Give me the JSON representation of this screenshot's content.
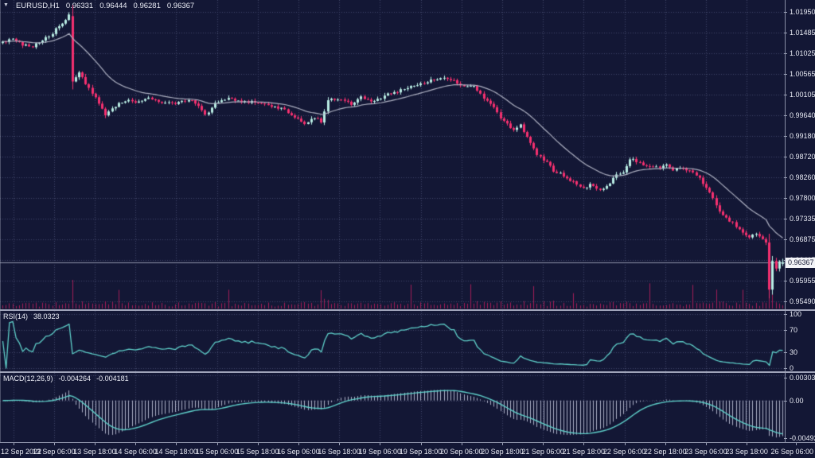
{
  "header": {
    "symbol": "EURUSD,H1",
    "open": "0.96331",
    "high": "0.96444",
    "low": "0.96281",
    "close": "0.96367"
  },
  "price_axis": {
    "badge": "0.96367"
  },
  "rsi_panel": {
    "label": "RSI(14)",
    "value": "38.0323"
  },
  "macd_panel": {
    "label": "MACD(12,26,9)",
    "macd_value": "-0.004264",
    "signal_value": "-0.004181"
  },
  "time_axis": {
    "labels": [
      "12 Sep 2022",
      "13 Sep 06:00",
      "13 Sep 18:00",
      "14 Sep 06:00",
      "14 Sep 18:00",
      "15 Sep 06:00",
      "15 Sep 18:00",
      "16 Sep 06:00",
      "16 Sep 18:00",
      "19 Sep 06:00",
      "19 Sep 18:00",
      "20 Sep 06:00",
      "20 Sep 18:00",
      "21 Sep 06:00",
      "21 Sep 18:00",
      "22 Sep 06:00",
      "22 Sep 18:00",
      "23 Sep 06:00",
      "23 Sep 18:00",
      "26 Sep 06:00"
    ]
  },
  "chart_data": {
    "type": "candlestick",
    "symbol": "EURUSD",
    "timeframe": "H1",
    "bars": 236,
    "price_scale": {
      "top": 1.0221,
      "bottom": 0.95317
    },
    "price_ticks": [
      1.0195,
      1.01485,
      1.01025,
      1.00565,
      1.00105,
      0.9964,
      0.9918,
      0.9872,
      0.9826,
      0.978,
      0.97335,
      0.96875,
      0.96415,
      0.95955,
      0.9549
    ],
    "last_price": 0.96367,
    "ohlc_current": {
      "open": 0.96331,
      "high": 0.96444,
      "low": 0.96281,
      "close": 0.96367
    },
    "path_anchors": [
      [
        0,
        1.0128
      ],
      [
        3,
        1.0133
      ],
      [
        6,
        1.0122
      ],
      [
        9,
        1.0118
      ],
      [
        12,
        1.013
      ],
      [
        15,
        1.0148
      ],
      [
        18,
        1.017
      ],
      [
        20,
        1.0188
      ],
      [
        21,
        1.004
      ],
      [
        23,
        1.0058
      ],
      [
        25,
        1.0035
      ],
      [
        28,
        1.0005
      ],
      [
        31,
        0.9966
      ],
      [
        34,
        0.9985
      ],
      [
        37,
        0.9998
      ],
      [
        40,
        0.9993
      ],
      [
        44,
        1.0004
      ],
      [
        48,
        0.9993
      ],
      [
        52,
        0.999
      ],
      [
        56,
        1.0
      ],
      [
        59,
        0.9985
      ],
      [
        61,
        0.9963
      ],
      [
        64,
        0.999
      ],
      [
        68,
        1.0
      ],
      [
        72,
        0.9996
      ],
      [
        76,
        0.9993
      ],
      [
        80,
        0.9987
      ],
      [
        84,
        0.998
      ],
      [
        88,
        0.9962
      ],
      [
        91,
        0.9944
      ],
      [
        94,
        0.9958
      ],
      [
        96,
        0.995
      ],
      [
        98,
        1.0
      ],
      [
        101,
        1.0001
      ],
      [
        105,
        0.999
      ],
      [
        108,
        1.0004
      ],
      [
        112,
        0.9996
      ],
      [
        116,
        1.001
      ],
      [
        119,
        1.0016
      ],
      [
        123,
        1.0029
      ],
      [
        127,
        1.0036
      ],
      [
        130,
        1.0044
      ],
      [
        133,
        1.0048
      ],
      [
        136,
        1.004
      ],
      [
        139,
        1.0028
      ],
      [
        142,
        1.003
      ],
      [
        145,
        1.0001
      ],
      [
        147,
        0.999
      ],
      [
        151,
        0.995
      ],
      [
        154,
        0.993
      ],
      [
        156,
        0.9942
      ],
      [
        159,
        0.9905
      ],
      [
        161,
        0.9878
      ],
      [
        164,
        0.986
      ],
      [
        166,
        0.984
      ],
      [
        168,
        0.9835
      ],
      [
        170,
        0.9822
      ],
      [
        172,
        0.9815
      ],
      [
        175,
        0.98
      ],
      [
        177,
        0.9812
      ],
      [
        180,
        0.9798
      ],
      [
        182,
        0.9806
      ],
      [
        185,
        0.983
      ],
      [
        187,
        0.9838
      ],
      [
        189,
        0.9868
      ],
      [
        191,
        0.986
      ],
      [
        194,
        0.9852
      ],
      [
        197,
        0.9848
      ],
      [
        200,
        0.9852
      ],
      [
        202,
        0.9842
      ],
      [
        205,
        0.9847
      ],
      [
        208,
        0.9835
      ],
      [
        210,
        0.9822
      ],
      [
        213,
        0.979
      ],
      [
        216,
        0.975
      ],
      [
        219,
        0.9728
      ],
      [
        221,
        0.9718
      ],
      [
        223,
        0.97
      ],
      [
        225,
        0.9692
      ],
      [
        227,
        0.97
      ],
      [
        229,
        0.9688
      ],
      [
        230,
        0.968
      ],
      [
        231,
        0.9575
      ],
      [
        232,
        0.964
      ],
      [
        233,
        0.9622
      ],
      [
        234,
        0.9638
      ],
      [
        235,
        0.96367
      ]
    ],
    "special_candles": {
      "21": {
        "open": 1.0185
      },
      "231": {
        "low": 0.9556
      },
      "235": {
        "open": 0.96331,
        "high": 0.96444,
        "low": 0.96281,
        "close": 0.96367
      }
    },
    "indicators": {
      "ma": {
        "type": "EMA",
        "period": 21
      },
      "rsi": {
        "period": 14,
        "last": 38.0323,
        "levels": [
          100,
          70,
          30,
          0
        ],
        "range": [
          0,
          100
        ]
      },
      "macd": {
        "fast": 12,
        "slow": 26,
        "signal": 9,
        "last": -0.004264,
        "signal_last": -0.004181,
        "range": [
          -0.00505,
          0.00335
        ],
        "axis_values": [
          0.003038,
          0,
          -0.004929
        ]
      }
    },
    "volume_spikes": [
      21,
      35,
      68,
      96,
      123,
      141,
      160,
      172,
      195,
      208,
      215,
      223,
      231
    ],
    "colors": {
      "background": "#131735",
      "grid": "#404669",
      "bull": "#b9ede4",
      "bear": "#f5306f",
      "volume": "#a21d57",
      "ma_line": "#aeb1c2",
      "indicator_line": "#5fd0ca",
      "macd_hist": "#c9cde0",
      "axis_text": "#e9ebf4",
      "panel_border": "#a0a4ba",
      "badge_bg": "#f2f3f7",
      "badge_text": "#141833",
      "bid_line": "#8e93a9"
    }
  }
}
